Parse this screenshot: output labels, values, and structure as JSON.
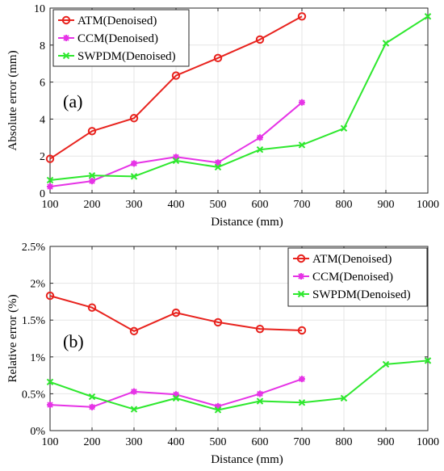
{
  "chart_data": [
    {
      "type": "line",
      "panel_label": "(a)",
      "xlabel": "Distance (mm)",
      "ylabel": "Absolute error (mm)",
      "xlim": [
        100,
        1000
      ],
      "ylim": [
        0,
        10
      ],
      "xticks": [
        "100",
        "200",
        "300",
        "400",
        "500",
        "600",
        "700",
        "800",
        "900",
        "1000"
      ],
      "yticks": [
        "0",
        "2",
        "4",
        "6",
        "8",
        "10"
      ],
      "grid": true,
      "legend": "top-left",
      "series": [
        {
          "name": "ATM(Denoised)",
          "color": "#e8231e",
          "marker": "circle",
          "x": [
            100,
            200,
            300,
            400,
            500,
            600,
            700
          ],
          "values": [
            1.85,
            3.35,
            4.05,
            6.35,
            7.3,
            8.3,
            9.55
          ]
        },
        {
          "name": "CCM(Denoised)",
          "color": "#e633e6",
          "marker": "star",
          "x": [
            100,
            200,
            300,
            400,
            500,
            600,
            700
          ],
          "values": [
            0.35,
            0.65,
            1.6,
            1.95,
            1.65,
            3.0,
            4.9
          ]
        },
        {
          "name": "SWPDM(Denoised)",
          "color": "#2ee82e",
          "marker": "x",
          "x": [
            100,
            200,
            300,
            400,
            500,
            600,
            700,
            800,
            900,
            1000
          ],
          "values": [
            0.7,
            0.95,
            0.9,
            1.75,
            1.4,
            2.35,
            2.6,
            3.5,
            8.1,
            9.55
          ]
        }
      ]
    },
    {
      "type": "line",
      "panel_label": "(b)",
      "xlabel": "Distance (mm)",
      "ylabel": "Relative error (%)",
      "xlim": [
        100,
        1000
      ],
      "ylim": [
        0,
        2.5
      ],
      "xticks": [
        "100",
        "200",
        "300",
        "400",
        "500",
        "600",
        "700",
        "800",
        "900",
        "1000"
      ],
      "yticks": [
        "0%",
        "0.5%",
        "1%",
        "1.5%",
        "2%",
        "2.5%"
      ],
      "grid": true,
      "legend": "top-right",
      "series": [
        {
          "name": "ATM(Denoised)",
          "color": "#e8231e",
          "marker": "circle",
          "x": [
            100,
            200,
            300,
            400,
            500,
            600,
            700
          ],
          "values": [
            1.83,
            1.67,
            1.35,
            1.6,
            1.47,
            1.38,
            1.36
          ]
        },
        {
          "name": "CCM(Denoised)",
          "color": "#e633e6",
          "marker": "star",
          "x": [
            100,
            200,
            300,
            400,
            500,
            600,
            700
          ],
          "values": [
            0.35,
            0.32,
            0.53,
            0.49,
            0.33,
            0.5,
            0.7
          ]
        },
        {
          "name": "SWPDM(Denoised)",
          "color": "#2ee82e",
          "marker": "x",
          "x": [
            100,
            200,
            300,
            400,
            500,
            600,
            700,
            800,
            900,
            1000
          ],
          "values": [
            0.66,
            0.46,
            0.29,
            0.44,
            0.28,
            0.4,
            0.38,
            0.44,
            0.9,
            0.95
          ]
        }
      ]
    }
  ]
}
